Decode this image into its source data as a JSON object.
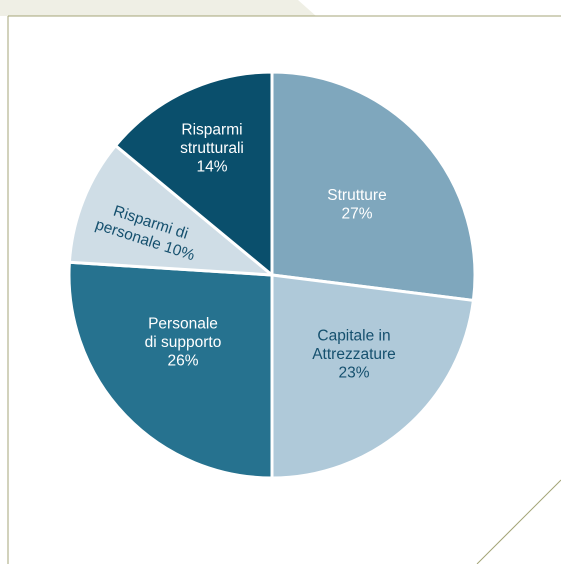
{
  "colors": {
    "frame_line": "#a4a578",
    "tab_fill": "#efefe5"
  },
  "chart_data": {
    "type": "pie",
    "title": "",
    "start": "12 o'clock",
    "direction": "clockwise",
    "slices": [
      {
        "label_lines": [
          "Strutture",
          "27%"
        ],
        "value": 27,
        "color": "#7fa7bd",
        "text_color": "#ffffff"
      },
      {
        "label_lines": [
          "Capitale in",
          "Attrezzature",
          "23%"
        ],
        "value": 23,
        "color": "#afc9d9",
        "text_color": "#15506e"
      },
      {
        "label_lines": [
          "Personale",
          "di supporto",
          "26%"
        ],
        "value": 26,
        "color": "#26728f",
        "text_color": "#ffffff"
      },
      {
        "label_lines": [
          "Risparmi di",
          "personale 10%"
        ],
        "value": 10,
        "color": "#cfdde6",
        "text_color": "#15506e"
      },
      {
        "label_lines": [
          "Risparmi",
          "strutturali",
          "14%"
        ],
        "value": 14,
        "color": "#0a4f6c",
        "text_color": "#ffffff"
      }
    ]
  }
}
